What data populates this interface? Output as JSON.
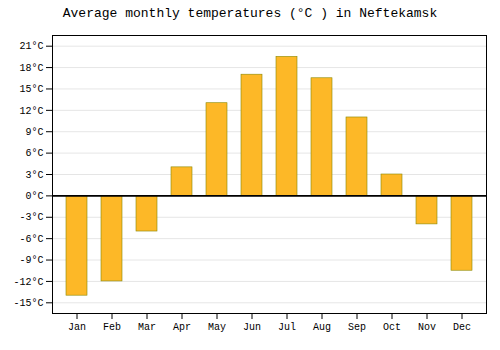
{
  "chart_data": {
    "type": "bar",
    "title": "Average monthly temperatures (°C ) in Neftekamsk",
    "categories": [
      "Jan",
      "Feb",
      "Mar",
      "Apr",
      "May",
      "Jun",
      "Jul",
      "Aug",
      "Sep",
      "Oct",
      "Nov",
      "Dec"
    ],
    "values": [
      -14,
      -12,
      -5,
      4,
      13,
      17,
      19.5,
      16.5,
      11,
      3,
      -4,
      -10.5
    ],
    "color": "#FDB827",
    "ylim": [
      -16.5,
      22.5
    ],
    "yticks": [
      {
        "value": -15,
        "label": "-15°C"
      },
      {
        "value": -12,
        "label": "-12°C"
      },
      {
        "value": -9,
        "label": "-9°C"
      },
      {
        "value": -6,
        "label": "-6°C"
      },
      {
        "value": -3,
        "label": "-3°C"
      },
      {
        "value": 0,
        "label": "0°C"
      },
      {
        "value": 3,
        "label": "3°C"
      },
      {
        "value": 6,
        "label": "6°C"
      },
      {
        "value": 9,
        "label": "9°C"
      },
      {
        "value": 12,
        "label": "12°C"
      },
      {
        "value": 15,
        "label": "15°C"
      },
      {
        "value": 18,
        "label": "18°C"
      },
      {
        "value": 21,
        "label": "21°C"
      }
    ],
    "grid": true
  }
}
